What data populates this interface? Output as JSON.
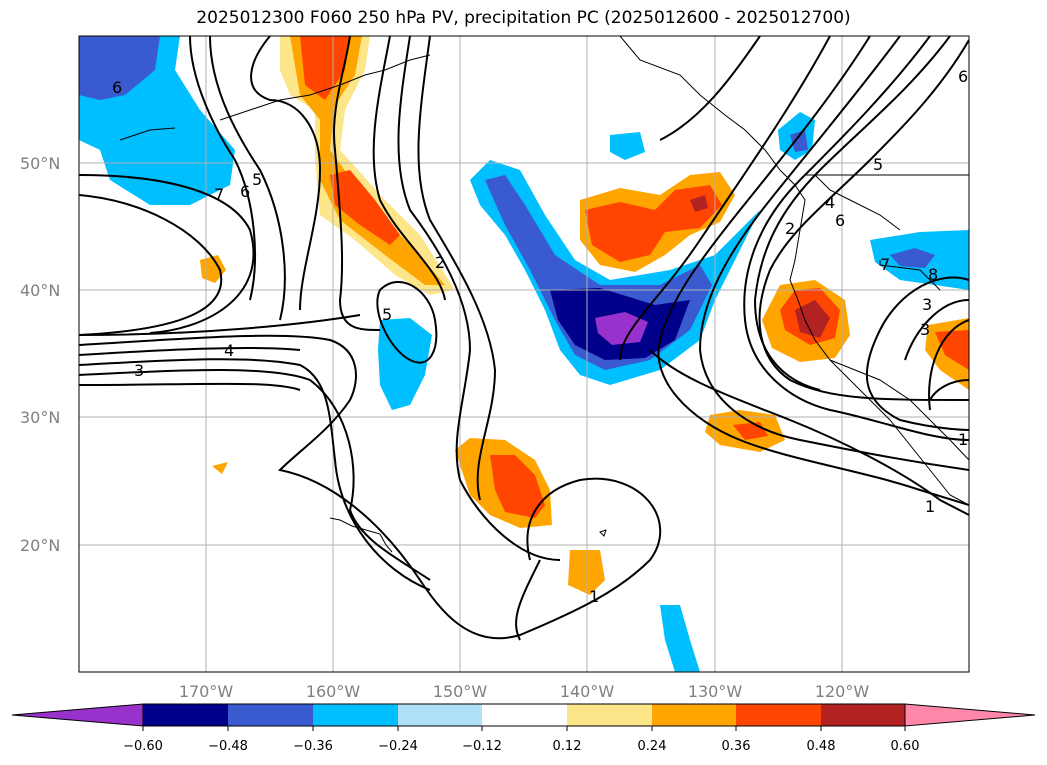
{
  "title": "2025012300 F060 250 hPa PV, precipitation PC (2025012600 - 2025012700)",
  "lat_labels": [
    "50°N",
    "40°N",
    "30°N",
    "20°N"
  ],
  "lon_labels": [
    "170°W",
    "160°W",
    "150°W",
    "140°W",
    "130°W",
    "120°W"
  ],
  "colorbar": {
    "ticks": [
      "−0.60",
      "−0.48",
      "−0.36",
      "−0.24",
      "−0.12",
      "0.12",
      "0.24",
      "0.36",
      "0.48",
      "0.60"
    ],
    "colors": [
      "#9932cc",
      "#00008b",
      "#3a5bd0",
      "#00bfff",
      "#b0e0f8",
      "#ffffff",
      "#fde68a",
      "#ffa500",
      "#ff4500",
      "#b22222",
      "#ff88aa"
    ]
  },
  "contour_labels": [
    "6",
    "7",
    "6",
    "5",
    "5",
    "2",
    "3",
    "4",
    "1",
    "1",
    "2",
    "4",
    "6",
    "5",
    "7",
    "8",
    "3",
    "3",
    "1",
    "6"
  ]
}
